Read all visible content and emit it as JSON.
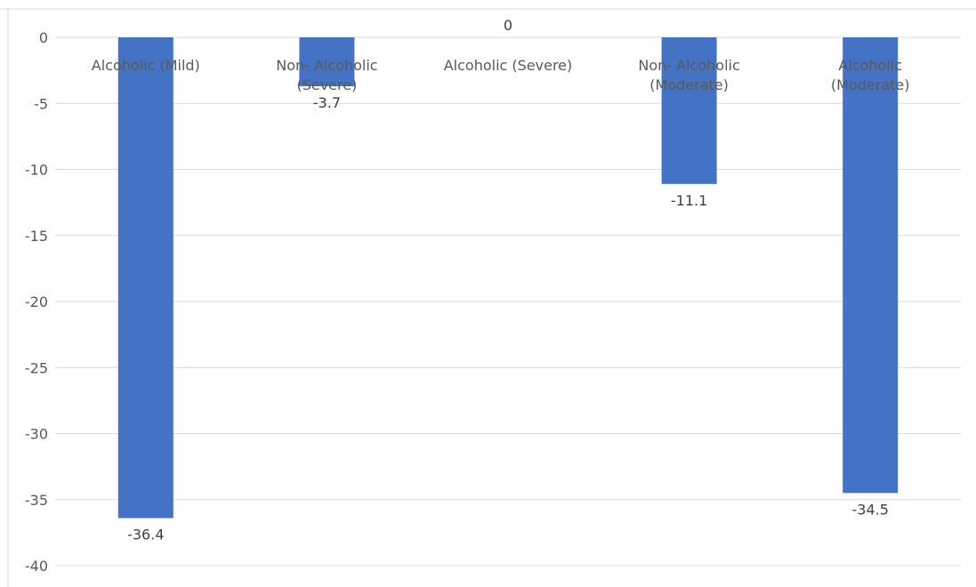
{
  "chart_data": {
    "type": "bar",
    "categories": [
      [
        "Alcoholic (Mild)"
      ],
      [
        "Non- Alcoholic",
        "(Severe)"
      ],
      [
        "Alcoholic (Severe)"
      ],
      [
        "Non- Alcoholic",
        "(Moderate)"
      ],
      [
        "Alcoholic",
        "(Moderate)"
      ]
    ],
    "values": [
      -36.4,
      -3.7,
      0,
      -11.1,
      -34.5
    ],
    "data_labels": [
      "-36.4",
      "-3.7",
      "0",
      "-11.1",
      "-34.5"
    ],
    "y_ticks": [
      0,
      -5,
      -10,
      -15,
      -20,
      -25,
      -30,
      -35,
      -40
    ],
    "ylim": [
      -40,
      0
    ],
    "grid": true,
    "bar_color": "#4472C4",
    "grid_color": "#D9D9D9",
    "title": "",
    "xlabel": "",
    "ylabel": ""
  }
}
